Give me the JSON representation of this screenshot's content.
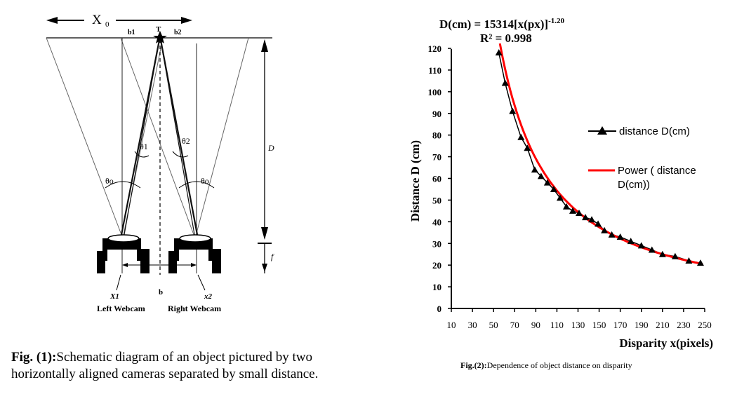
{
  "fig1": {
    "labels": {
      "x0": "X",
      "x0_sub": "0",
      "b1": "b1",
      "b2": "b2",
      "t": "T",
      "theta1": "θ1",
      "theta2": "θ2",
      "theta_o_left": "θo",
      "theta_o_right": "θo",
      "d": "D",
      "f": "f",
      "b": "b",
      "x1": "X1",
      "x2": "x2",
      "left_webcam": "Left Webcam",
      "right_webcam": "Right Webcam"
    },
    "caption_bold": "Fig. (1):",
    "caption_text": "Schematic diagram of an object pictured by two horizontally aligned cameras separated by small distance."
  },
  "fig2": {
    "caption_bold": "Fig.(2):",
    "caption_text": "Dependence of object distance on disparity"
  },
  "chart_data": {
    "type": "scatter",
    "equation": {
      "prefix": "D(cm) = 15314[x(px)]",
      "exponent": "-1.20"
    },
    "r_squared": "R² = 0.998",
    "xlabel": "Disparity x(pixels)",
    "ylabel": "Distance D (cm)",
    "xlim": [
      10,
      250
    ],
    "ylim": [
      0,
      120
    ],
    "xticks": [
      10,
      30,
      50,
      70,
      90,
      110,
      130,
      150,
      170,
      190,
      210,
      230,
      250
    ],
    "yticks": [
      0,
      10,
      20,
      30,
      40,
      50,
      60,
      70,
      80,
      90,
      100,
      110,
      120
    ],
    "legend_position": "right",
    "series": [
      {
        "name": "distance D(cm)",
        "color": "#000000",
        "marker": "triangle",
        "x": [
          55,
          61,
          68,
          76,
          82,
          89,
          95,
          101,
          107,
          113,
          119,
          125,
          131,
          137,
          143,
          149,
          155,
          162,
          170,
          180,
          190,
          200,
          210,
          222,
          235,
          246
        ],
        "y": [
          118,
          104,
          91,
          79,
          74,
          64,
          61,
          58,
          55,
          51,
          47,
          45,
          44,
          42,
          41,
          39,
          36,
          34,
          33,
          31,
          29,
          27,
          25,
          24,
          22,
          21
        ]
      },
      {
        "name": "Power ( distance D(cm))",
        "color": "#ff0000",
        "type": "line",
        "function": "15314*x^-1.20",
        "x_range": [
          56,
          248
        ]
      }
    ]
  }
}
